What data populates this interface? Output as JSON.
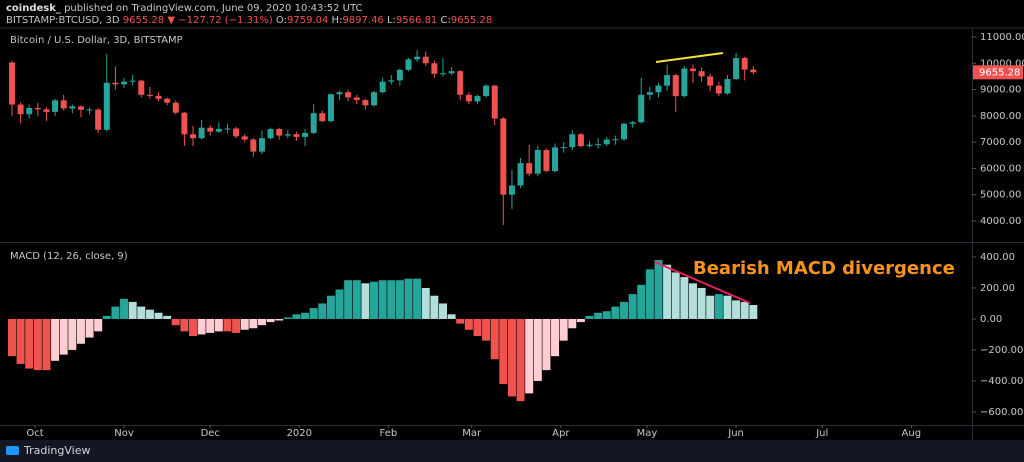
{
  "header": {
    "author": "coindesk_",
    "published": "published on TradingView.com, June 09, 2020 10:43:52 UTC",
    "symbol": "BITSTAMP:BTCUSD, 3D",
    "change": "▼ −127.72 (−1.31%)",
    "o": "O:",
    "h": "H:",
    "l": "L:",
    "c": "C:"
  },
  "footer": {
    "brand": "TradingView"
  },
  "chart_data": [
    {
      "type": "candlestick",
      "title": "Bitcoin / U.S. Dollar, 3D, BITSTAMP",
      "up_color": "#26a69a",
      "down_color": "#ef5350",
      "open": [
        10030,
        8430,
        8060,
        8300,
        8250,
        8150,
        8590,
        8280,
        8360,
        8230,
        8240,
        7470,
        9260,
        9200,
        9300,
        9340,
        8800,
        8760,
        8650,
        8500,
        8120,
        7300,
        7150,
        7550,
        7400,
        7500,
        7520,
        7220,
        7100,
        6640,
        7150,
        7500,
        7250,
        7300,
        7200,
        7350,
        8100,
        7800,
        8820,
        8900,
        8700,
        8600,
        8400,
        8900,
        9300,
        9350,
        9750,
        10150,
        10250,
        10000,
        9600,
        9620,
        9700,
        8800,
        8550,
        8750,
        9150,
        7900,
        5000,
        5350,
        6200,
        5800,
        6700,
        5900,
        6800,
        6810,
        7300,
        6850,
        6900,
        6920,
        7100,
        7110,
        7700,
        7760,
        8800,
        8900,
        9150,
        9550,
        8750,
        9800,
        9700,
        9500,
        9150,
        8850,
        9400,
        10200,
        9759.04
      ],
      "high": [
        10100,
        8520,
        8420,
        8500,
        8330,
        8650,
        8800,
        8430,
        8400,
        8320,
        8300,
        10350,
        9880,
        9450,
        9560,
        9380,
        9100,
        8900,
        8700,
        8580,
        8150,
        7620,
        7850,
        7650,
        7750,
        7700,
        7580,
        7300,
        7150,
        7450,
        7550,
        7550,
        7450,
        7400,
        7500,
        8450,
        8200,
        8850,
        8950,
        9000,
        8800,
        8650,
        8950,
        9450,
        9550,
        9800,
        10200,
        10500,
        10450,
        10100,
        10200,
        9850,
        9750,
        8900,
        8800,
        9200,
        9180,
        7950,
        5950,
        6400,
        6900,
        6850,
        6750,
        6950,
        7000,
        7450,
        7350,
        7050,
        7150,
        7200,
        7250,
        7750,
        7800,
        9450,
        9100,
        9250,
        9950,
        9600,
        9900,
        9950,
        9850,
        9600,
        9300,
        9550,
        10400,
        10250,
        9897.46
      ],
      "low": [
        7990,
        7710,
        7900,
        7990,
        7800,
        8000,
        8200,
        8100,
        7950,
        8050,
        7350,
        7400,
        9000,
        9050,
        9150,
        8700,
        8650,
        8550,
        8400,
        8050,
        6850,
        6850,
        7100,
        7250,
        7350,
        7350,
        7150,
        7000,
        6450,
        6550,
        7100,
        7100,
        7150,
        7050,
        6850,
        7300,
        7750,
        7750,
        8600,
        8550,
        8450,
        8250,
        8350,
        8850,
        9200,
        9150,
        9700,
        10050,
        9900,
        9450,
        9500,
        9550,
        8600,
        8450,
        8450,
        8700,
        7650,
        3850,
        4450,
        5250,
        5700,
        5700,
        5850,
        5850,
        6600,
        6700,
        6800,
        6800,
        6750,
        6850,
        6900,
        7050,
        7550,
        7700,
        8600,
        8700,
        8950,
        8150,
        8700,
        9250,
        9300,
        8950,
        8750,
        8800,
        9350,
        9350,
        9566.81
      ],
      "close": [
        8430,
        8060,
        8300,
        8250,
        8150,
        8590,
        8280,
        8360,
        8230,
        8240,
        7470,
        9260,
        9200,
        9300,
        9340,
        8800,
        8760,
        8650,
        8500,
        8120,
        7300,
        7150,
        7550,
        7400,
        7500,
        7520,
        7220,
        7100,
        6640,
        7150,
        7500,
        7250,
        7300,
        7200,
        7350,
        8100,
        7800,
        8820,
        8900,
        8700,
        8600,
        8400,
        8900,
        9300,
        9350,
        9750,
        10150,
        10250,
        10000,
        9600,
        9620,
        9700,
        8800,
        8550,
        8750,
        9150,
        7900,
        5000,
        5350,
        6200,
        5800,
        6700,
        5900,
        6800,
        6810,
        7300,
        6850,
        6900,
        6920,
        7100,
        7110,
        7700,
        7760,
        8800,
        8900,
        9150,
        9550,
        8750,
        9800,
        9700,
        9500,
        9150,
        8850,
        9400,
        10200,
        9759.04,
        9655.28
      ],
      "xlim": [
        -1.39,
        111.37
      ],
      "xticks": [
        {
          "value": 2.67,
          "label": "Oct"
        },
        {
          "value": 13,
          "label": "Nov"
        },
        {
          "value": 23,
          "label": "Dec"
        },
        {
          "value": 33.33,
          "label": "2020"
        },
        {
          "value": 43.67,
          "label": "Feb"
        },
        {
          "value": 53.33,
          "label": "Mar"
        },
        {
          "value": 63.67,
          "label": "Apr"
        },
        {
          "value": 73.67,
          "label": "May"
        },
        {
          "value": 84,
          "label": "Jun"
        },
        {
          "value": 94,
          "label": "Jul"
        },
        {
          "value": 104.33,
          "label": "Aug"
        }
      ],
      "ylim": [
        3201,
        11342
      ],
      "yticks": [
        {
          "value": 4000,
          "label": "4000.00"
        },
        {
          "value": 5000,
          "label": "5000.00"
        },
        {
          "value": 6000,
          "label": "6000.00"
        },
        {
          "value": 7000,
          "label": "7000.00"
        },
        {
          "value": 8000,
          "label": "8000.00"
        },
        {
          "value": 9000,
          "label": "9000.00"
        },
        {
          "value": 10000,
          "label": "10000.00"
        },
        {
          "value": 11000,
          "label": "11000.00"
        }
      ]
    },
    {
      "type": "bar",
      "title": "MACD (12, 26, close, 9)",
      "annotation": "Bearish MACD divergence",
      "colors": {
        "up_rising": "#26a69a",
        "up_falling": "#b2dfdb",
        "down_falling": "#ef5350",
        "down_rising": "#ffcdd2"
      },
      "values": [
        -240,
        -290,
        -320,
        -330,
        -330,
        -270,
        -230,
        -200,
        -160,
        -120,
        -80,
        20,
        80,
        130,
        110,
        80,
        60,
        40,
        20,
        -40,
        -80,
        -110,
        -100,
        -90,
        -80,
        -80,
        -90,
        -70,
        -60,
        -40,
        -20,
        -10,
        10,
        30,
        40,
        70,
        100,
        150,
        190,
        250,
        250,
        230,
        240,
        250,
        250,
        250,
        260,
        260,
        200,
        150,
        100,
        30,
        -30,
        -70,
        -110,
        -140,
        -260,
        -420,
        -500,
        -530,
        -480,
        -400,
        -330,
        -240,
        -140,
        -60,
        -20,
        20,
        40,
        50,
        80,
        110,
        160,
        220,
        320,
        380,
        350,
        300,
        270,
        230,
        200,
        150,
        160,
        150,
        120,
        110,
        90
      ],
      "ylim": [
        -684,
        490
      ],
      "yticks": [
        {
          "value": -600,
          "label": "−600.00"
        },
        {
          "value": -400,
          "label": "−400.00"
        },
        {
          "value": -200,
          "label": "−200.00"
        },
        {
          "value": 0,
          "label": "0.00"
        },
        {
          "value": 200,
          "label": "200.00"
        },
        {
          "value": 400,
          "label": "400.00"
        }
      ]
    }
  ]
}
